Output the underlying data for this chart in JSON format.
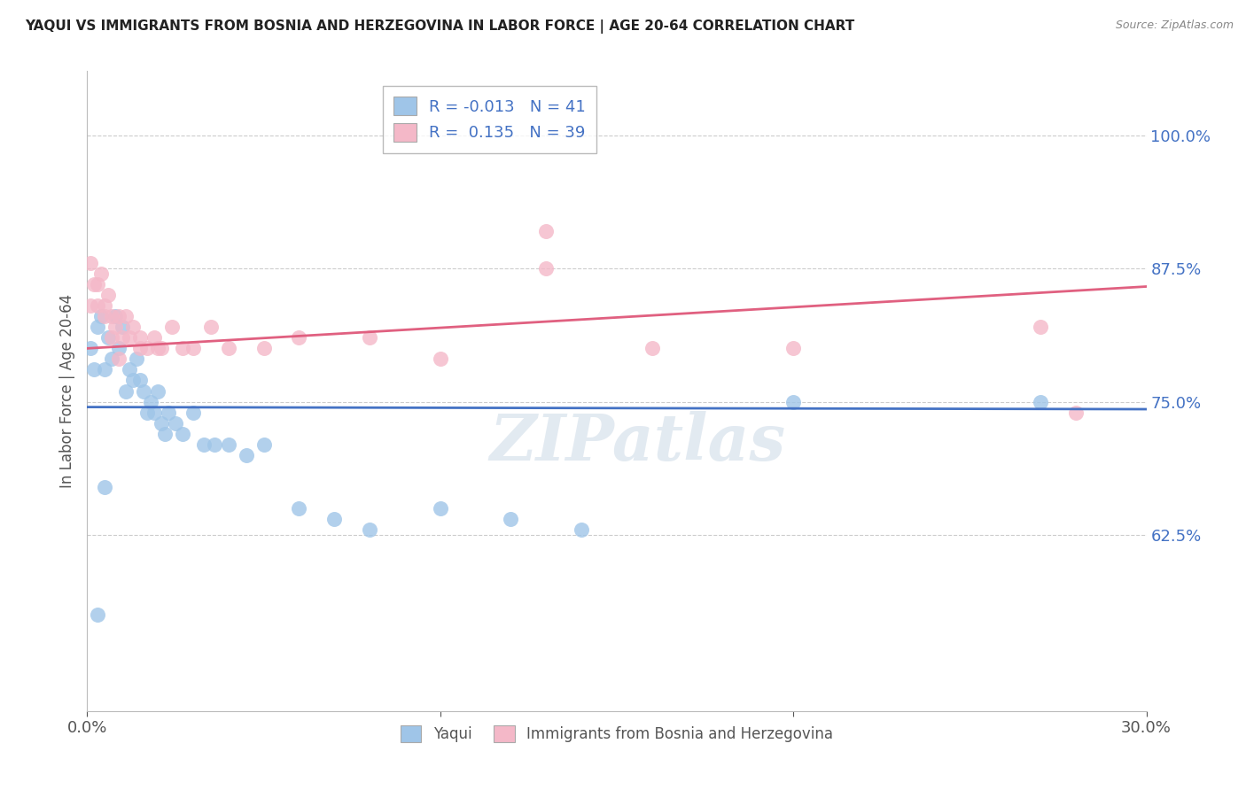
{
  "title": "YAQUI VS IMMIGRANTS FROM BOSNIA AND HERZEGOVINA IN LABOR FORCE | AGE 20-64 CORRELATION CHART",
  "source": "Source: ZipAtlas.com",
  "ylabel": "In Labor Force | Age 20-64",
  "xlim": [
    0.0,
    0.3
  ],
  "ylim": [
    0.46,
    1.06
  ],
  "yticks": [
    0.625,
    0.75,
    0.875,
    1.0
  ],
  "ytick_labels": [
    "62.5%",
    "75.0%",
    "87.5%",
    "100.0%"
  ],
  "xticks": [
    0.0,
    0.1,
    0.2,
    0.3
  ],
  "xtick_labels": [
    "0.0%",
    "",
    "",
    "30.0%"
  ],
  "blue_scatter_x": [
    0.001,
    0.002,
    0.003,
    0.004,
    0.005,
    0.006,
    0.007,
    0.008,
    0.009,
    0.01,
    0.011,
    0.012,
    0.013,
    0.014,
    0.015,
    0.016,
    0.017,
    0.018,
    0.019,
    0.02,
    0.021,
    0.022,
    0.023,
    0.025,
    0.027,
    0.03,
    0.033,
    0.036,
    0.04,
    0.045,
    0.05,
    0.06,
    0.07,
    0.08,
    0.1,
    0.12,
    0.14,
    0.2,
    0.27,
    0.005,
    0.003
  ],
  "blue_scatter_y": [
    0.8,
    0.78,
    0.82,
    0.83,
    0.78,
    0.81,
    0.79,
    0.83,
    0.8,
    0.82,
    0.76,
    0.78,
    0.77,
    0.79,
    0.77,
    0.76,
    0.74,
    0.75,
    0.74,
    0.76,
    0.73,
    0.72,
    0.74,
    0.73,
    0.72,
    0.74,
    0.71,
    0.71,
    0.71,
    0.7,
    0.71,
    0.65,
    0.64,
    0.63,
    0.65,
    0.64,
    0.63,
    0.75,
    0.75,
    0.67,
    0.55
  ],
  "pink_scatter_x": [
    0.001,
    0.002,
    0.003,
    0.004,
    0.005,
    0.006,
    0.007,
    0.008,
    0.009,
    0.01,
    0.011,
    0.012,
    0.013,
    0.015,
    0.017,
    0.019,
    0.021,
    0.024,
    0.027,
    0.03,
    0.035,
    0.04,
    0.05,
    0.06,
    0.08,
    0.1,
    0.13,
    0.16,
    0.2,
    0.27,
    0.001,
    0.003,
    0.005,
    0.007,
    0.009,
    0.015,
    0.02,
    0.28,
    0.13
  ],
  "pink_scatter_y": [
    0.84,
    0.86,
    0.84,
    0.87,
    0.84,
    0.85,
    0.83,
    0.82,
    0.83,
    0.81,
    0.83,
    0.81,
    0.82,
    0.8,
    0.8,
    0.81,
    0.8,
    0.82,
    0.8,
    0.8,
    0.82,
    0.8,
    0.8,
    0.81,
    0.81,
    0.79,
    0.91,
    0.8,
    0.8,
    0.82,
    0.88,
    0.86,
    0.83,
    0.81,
    0.79,
    0.81,
    0.8,
    0.74,
    0.875
  ],
  "blue_line_x": [
    0.0,
    0.3
  ],
  "blue_line_y": [
    0.745,
    0.743
  ],
  "pink_line_x": [
    0.0,
    0.3
  ],
  "pink_line_y": [
    0.8,
    0.858
  ],
  "blue_color": "#4472c4",
  "pink_color": "#e06080",
  "blue_scatter_color": "#9fc5e8",
  "pink_scatter_color": "#f4b8c8",
  "watermark_text": "ZIPatlas",
  "background_color": "#ffffff",
  "grid_color": "#cccccc",
  "title_color": "#222222",
  "source_color": "#888888",
  "ytick_color": "#4472c4",
  "xtick_color": "#555555"
}
